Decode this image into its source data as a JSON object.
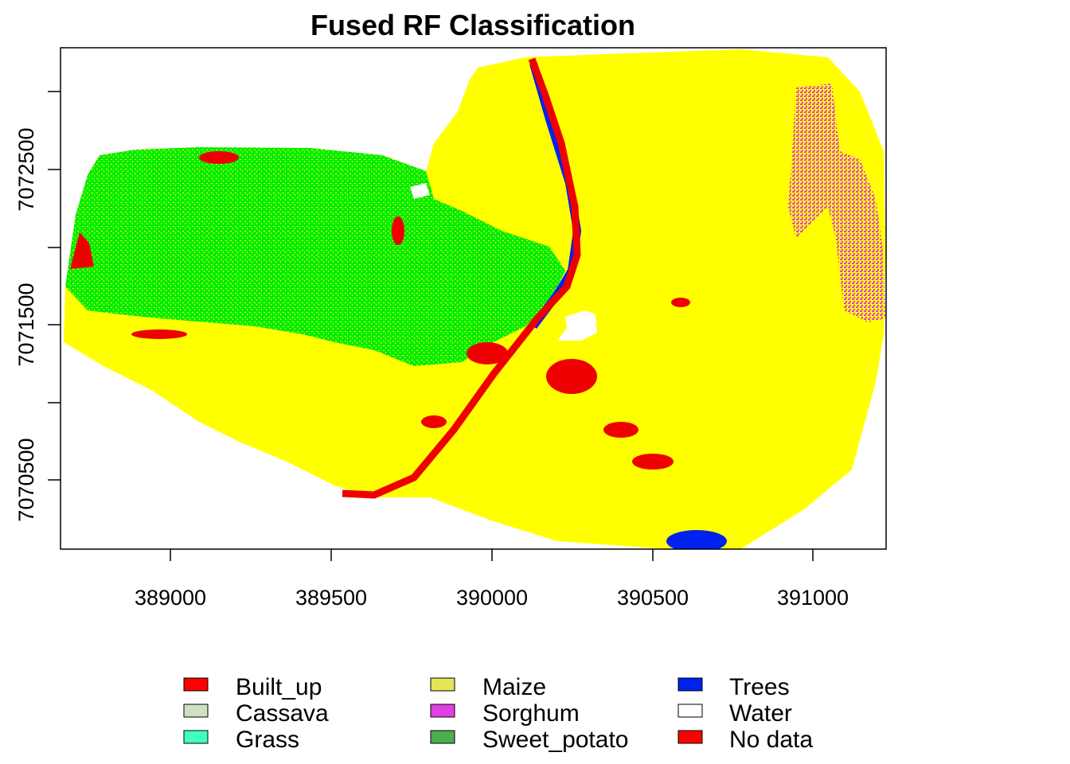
{
  "map": {
    "title": "Fused RF Classification",
    "x_ticks": [
      "389000",
      "389500",
      "390000",
      "390500",
      "391000"
    ],
    "y_ticks": [
      "7070500",
      "7071500",
      "7072500"
    ]
  },
  "legend": {
    "items": [
      {
        "label": "Built_up",
        "color": "#ff0000"
      },
      {
        "label": "Cassava",
        "color": "#cfe0c4"
      },
      {
        "label": "Grass",
        "color": "#40ffc0"
      },
      {
        "label": "Maize",
        "color": "#e5e55a"
      },
      {
        "label": "Sorghum",
        "color": "#e040e0"
      },
      {
        "label": "Sweet_potato",
        "color": "#4cad4c"
      },
      {
        "label": "Trees",
        "color": "#0022ee"
      },
      {
        "label": "Water",
        "color": "#ffffff"
      },
      {
        "label": "No data",
        "color": "#ff0000"
      }
    ]
  },
  "colors": {
    "maize_area": "#ffff00",
    "grass_area": "#00ee00",
    "built_up": "#ee0000",
    "trees": "#0022ee",
    "sorghum": "#e040e0"
  }
}
